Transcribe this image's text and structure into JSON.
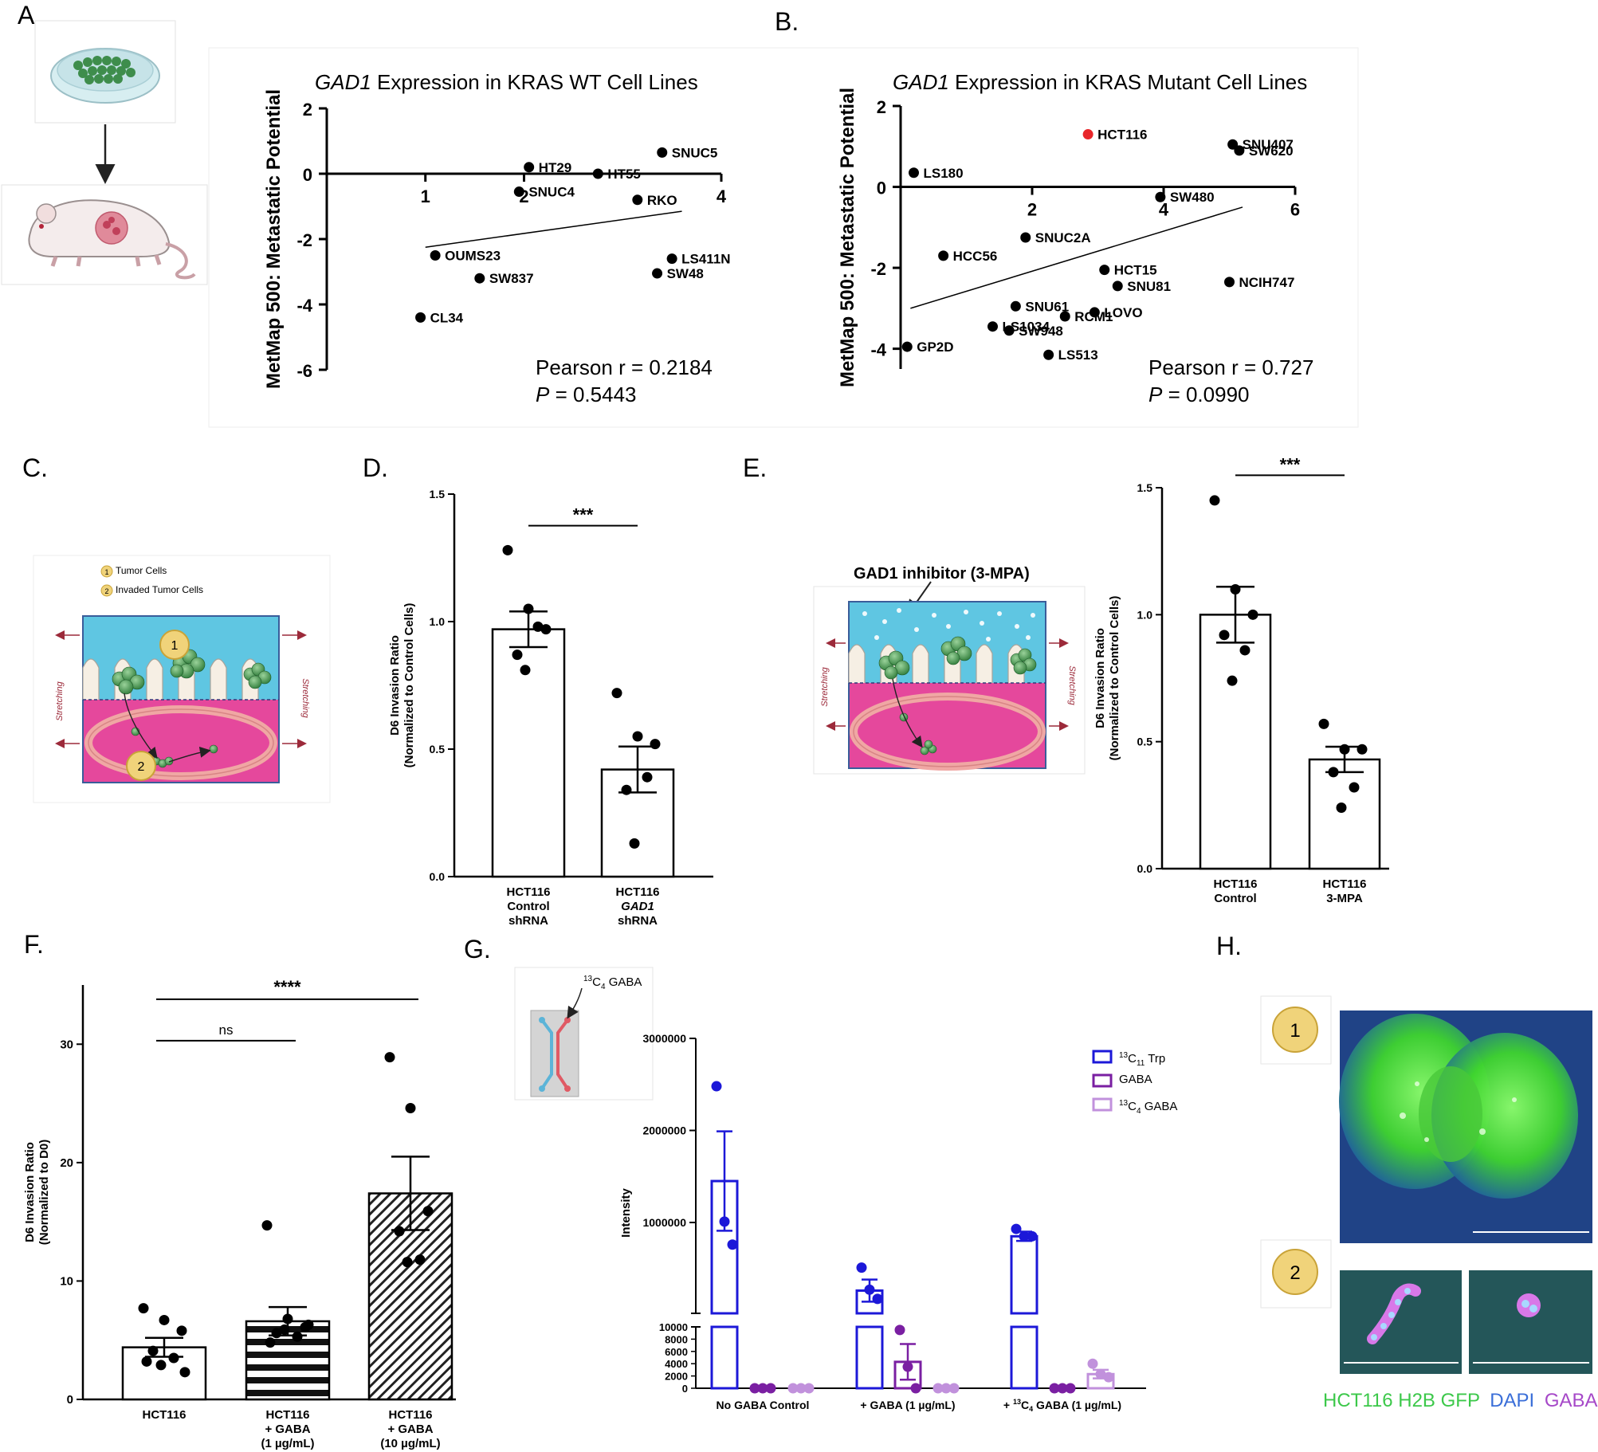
{
  "panel_labels": [
    "A.",
    "B.",
    "C.",
    "D.",
    "E.",
    "F.",
    "G.",
    "H."
  ],
  "colors": {
    "axis": "#000000",
    "point": "#000000",
    "highlight": "#e8262a",
    "trp_blue": "#1c18d8",
    "gaba_purple": "#7a1fa2",
    "c4gaba_lilac": "#c191dc",
    "legend_green": "#3cc84a",
    "legend_blue": "#3a6ed8",
    "legend_purple": "#a648c8",
    "badge_fill": "#f0d37a",
    "badge_stroke": "#c9a338",
    "chip_blue": "#5cb4d8",
    "chip_red": "#e05a64",
    "tissue_blue": "#5fc6e2",
    "tissue_pink": "#e5489c"
  },
  "schematic_a": {
    "icons": [
      "culture-dish-icon",
      "down-arrow-icon",
      "mouse-icon"
    ]
  },
  "schematic_c": {
    "legend": [
      {
        "num": "1",
        "label": "Tumor Cells"
      },
      {
        "num": "2",
        "label": "Invaded Tumor Cells"
      }
    ],
    "side_label": "Stretching",
    "badges": [
      "1",
      "2"
    ]
  },
  "schematic_e": {
    "title": "GAD1 inhibitor (3-MPA)",
    "side_label": "Stretching"
  },
  "schematic_g": {
    "label": "13C4 GABA",
    "label_super": "13",
    "label_main": "C",
    "label_sub": "4",
    "label_rest": " GABA"
  },
  "panel_h": {
    "badges": [
      "1",
      "2"
    ],
    "legend_green": "HCT116 H2B GFP",
    "legend_blue": "DAPI",
    "legend_purple": "GABA"
  },
  "chart_data": [
    {
      "panel": "A",
      "type": "scatter",
      "title_italic": "GAD1",
      "title_rest": " Expression in KRAS WT Cell Lines",
      "xlabel": "",
      "ylabel": "MetMap 500: Metastatic Potential",
      "xlim": [
        0,
        4
      ],
      "ylim": [
        -6,
        2
      ],
      "xticks": [
        1,
        2,
        4
      ],
      "yticks": [
        2,
        0,
        -2,
        -4,
        -6
      ],
      "points": [
        {
          "label": "HT29",
          "x": 2.05,
          "y": 0.2
        },
        {
          "label": "SNUC5",
          "x": 3.4,
          "y": 0.65
        },
        {
          "label": "HT55",
          "x": 2.75,
          "y": 0.0
        },
        {
          "label": "SNUC4",
          "x": 1.95,
          "y": -0.55
        },
        {
          "label": "RKO",
          "x": 3.15,
          "y": -0.8
        },
        {
          "label": "OUMS23",
          "x": 1.1,
          "y": -2.5
        },
        {
          "label": "SW837",
          "x": 1.55,
          "y": -3.2
        },
        {
          "label": "CL34",
          "x": 0.95,
          "y": -4.4
        },
        {
          "label": "LS411N",
          "x": 3.5,
          "y": -2.6
        },
        {
          "label": "SW48",
          "x": 3.35,
          "y": -3.05
        }
      ],
      "fit": {
        "x": [
          1.0,
          3.6
        ],
        "y": [
          -2.25,
          -1.15
        ]
      },
      "stats_r": "Pearson r = 0.2184",
      "stats_p_italic": "P",
      "stats_p_rest": " = 0.5443"
    },
    {
      "panel": "B",
      "type": "scatter",
      "title_italic": "GAD1",
      "title_rest": " Expression in KRAS Mutant Cell Lines",
      "xlabel": "",
      "ylabel": "MetMap 500: Metastatic Potential",
      "xlim": [
        0,
        6
      ],
      "ylim": [
        -4.5,
        2
      ],
      "xticks": [
        2,
        4,
        6
      ],
      "yticks": [
        2,
        0,
        -2,
        -4
      ],
      "points": [
        {
          "label": "HCT116",
          "x": 2.85,
          "y": 1.3,
          "highlight": true
        },
        {
          "label": "LS180",
          "x": 0.2,
          "y": 0.35
        },
        {
          "label": "SNU407",
          "x": 5.05,
          "y": 1.05
        },
        {
          "label": "SW620",
          "x": 5.15,
          "y": 0.9
        },
        {
          "label": "SW480",
          "x": 3.95,
          "y": -0.25
        },
        {
          "label": "SNUC2A",
          "x": 1.9,
          "y": -1.25
        },
        {
          "label": "HCC56",
          "x": 0.65,
          "y": -1.7
        },
        {
          "label": "HCT15",
          "x": 3.1,
          "y": -2.05
        },
        {
          "label": "SNU81",
          "x": 3.3,
          "y": -2.45
        },
        {
          "label": "NCIH747",
          "x": 5.0,
          "y": -2.35
        },
        {
          "label": "SNU61",
          "x": 1.75,
          "y": -2.95
        },
        {
          "label": "LS1034",
          "x": 1.4,
          "y": -3.45
        },
        {
          "label": "SW948",
          "x": 1.65,
          "y": -3.55
        },
        {
          "label": "RCM1",
          "x": 2.5,
          "y": -3.2
        },
        {
          "label": "LOVO",
          "x": 2.95,
          "y": -3.1
        },
        {
          "label": "LS513",
          "x": 2.25,
          "y": -4.15
        },
        {
          "label": "GP2D",
          "x": 0.1,
          "y": -3.95
        }
      ],
      "fit": {
        "x": [
          0.15,
          5.2
        ],
        "y": [
          -3.0,
          -0.5
        ]
      },
      "stats_r": "Pearson r = 0.727",
      "stats_p_italic": "P",
      "stats_p_rest": " = 0.0990"
    },
    {
      "panel": "D",
      "type": "bar",
      "ylabel_line1": "D6 Invasion Ratio",
      "ylabel_line2": "(Normalized to Control Cells)",
      "ylim": [
        0,
        1.5
      ],
      "yticks": [
        "1.5",
        "1.0",
        "0.5",
        "0.0"
      ],
      "bars": [
        {
          "label_lines": [
            "HCT116",
            "Control",
            "shRNA"
          ],
          "italic_line": -1,
          "mean": 0.97,
          "sem": 0.07,
          "points": [
            1.28,
            1.05,
            0.97,
            0.87,
            0.98,
            0.81
          ]
        },
        {
          "label_lines": [
            "HCT116",
            "GAD1",
            "shRNA"
          ],
          "italic_line": 1,
          "mean": 0.42,
          "sem": 0.09,
          "points": [
            0.72,
            0.55,
            0.52,
            0.34,
            0.39,
            0.13
          ]
        }
      ],
      "significance": "***"
    },
    {
      "panel": "E",
      "type": "bar",
      "ylabel_line1": "D6 Invasion Ratio",
      "ylabel_line2": "(Normalized to Control Cells)",
      "ylim": [
        0,
        1.5
      ],
      "yticks": [
        "1.5",
        "1.0",
        "0.5",
        "0.0"
      ],
      "bars": [
        {
          "label_lines": [
            "HCT116",
            "Control"
          ],
          "italic_line": -1,
          "mean": 1.0,
          "sem": 0.11,
          "points": [
            1.45,
            1.1,
            1.0,
            0.92,
            0.86,
            0.74
          ]
        },
        {
          "label_lines": [
            "HCT116",
            "3-MPA"
          ],
          "italic_line": -1,
          "mean": 0.43,
          "sem": 0.05,
          "points": [
            0.57,
            0.47,
            0.47,
            0.38,
            0.32,
            0.24
          ]
        }
      ],
      "significance": "***"
    },
    {
      "panel": "F",
      "type": "bar",
      "ylabel_line1": "D6 Invasion Ratio",
      "ylabel_line2": "(Normalized to D0)",
      "ylim": [
        0,
        35
      ],
      "yticks": [
        "30",
        "20",
        "10",
        "0"
      ],
      "bars": [
        {
          "label_lines": [
            "HCT116"
          ],
          "italic_line": -1,
          "mean": 4.4,
          "sem": 0.8,
          "fill": "white",
          "points": [
            7.7,
            6.7,
            5.8,
            4.1,
            3.5,
            2.9,
            2.3,
            3.2
          ]
        },
        {
          "label_lines": [
            "HCT116",
            "+ GABA",
            "(1 µg/mL)"
          ],
          "italic_line": -1,
          "mean": 6.6,
          "sem": 1.2,
          "fill": "hstripes",
          "points": [
            14.7,
            6.8,
            6.1,
            5.6,
            5.3,
            5.9,
            6.3,
            4.8
          ]
        },
        {
          "label_lines": [
            "HCT116",
            "+ GABA",
            "(10 µg/mL)"
          ],
          "italic_line": -1,
          "mean": 17.4,
          "sem": 3.1,
          "fill": "diag",
          "points": [
            28.9,
            24.6,
            15.9,
            14.2,
            11.8,
            11.6
          ]
        }
      ],
      "brackets": [
        {
          "label": "ns",
          "from": 0,
          "to": 1,
          "y": 30.3
        },
        {
          "label": "****",
          "from": 0,
          "to": 2,
          "y": 33.8
        }
      ]
    },
    {
      "panel": "G",
      "type": "bar",
      "ylabel": "Intensity",
      "upper_ylim": [
        13000,
        3000000
      ],
      "upper_yticks": [
        "3000000",
        "2000000",
        "1000000"
      ],
      "lower_ylim": [
        0,
        10000
      ],
      "lower_yticks": [
        "10000",
        "8000",
        "6000",
        "4000",
        "2000",
        "0"
      ],
      "groups": [
        {
          "label": "No GABA Control",
          "label_prefix": "",
          "label_super": "",
          "label_main": "",
          "label_sub": "",
          "label_rest": ""
        },
        {
          "label": "+ GABA (1 µg/mL)",
          "label_prefix": "",
          "label_super": "",
          "label_main": "",
          "label_sub": "",
          "label_rest": ""
        },
        {
          "label": "+ 13C4 GABA (1 µg/mL)",
          "label_prefix": "+ ",
          "label_super": "13",
          "label_main": "C",
          "label_sub": "4",
          "label_rest": " GABA (1 µg/mL)"
        }
      ],
      "legend": [
        {
          "label": "13C11 Trp",
          "super": "13",
          "main": "C",
          "sub": "11",
          "rest": " Trp",
          "color": "#1c18d8"
        },
        {
          "label": "GABA",
          "super": "",
          "main": "",
          "sub": "",
          "rest": "GABA",
          "color": "#7a1fa2"
        },
        {
          "label": "13C4 GABA",
          "super": "13",
          "main": "C",
          "sub": "4",
          "rest": " GABA",
          "color": "#c191dc"
        }
      ],
      "series": [
        {
          "name": "13C11 Trp",
          "values": [
            1450000,
            260000,
            850000
          ],
          "sem": [
            540000,
            120000,
            50000
          ],
          "points": [
            [
              2480000,
              1010000,
              760000
            ],
            [
              510000,
              270000,
              170000
            ],
            [
              930000,
              850000,
              850000
            ]
          ]
        },
        {
          "name": "GABA",
          "values": [
            0,
            4300,
            0
          ],
          "sem": [
            0,
            2900,
            0
          ],
          "points": [
            [
              0,
              0,
              0
            ],
            [
              9500,
              3500,
              0
            ],
            [
              0,
              0,
              0
            ]
          ]
        },
        {
          "name": "13C4 GABA",
          "values": [
            0,
            0,
            2300
          ],
          "sem": [
            0,
            0,
            700
          ],
          "points": [
            [
              0,
              0,
              0
            ],
            [
              0,
              0,
              0
            ],
            [
              4000,
              2300,
              1800
            ]
          ]
        }
      ]
    }
  ]
}
